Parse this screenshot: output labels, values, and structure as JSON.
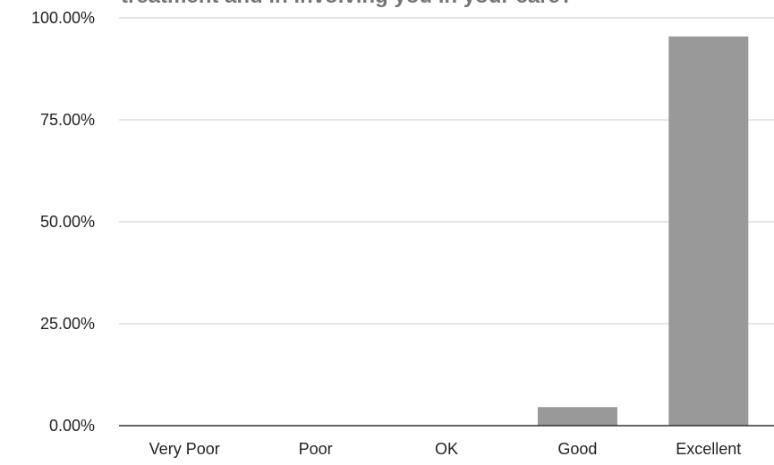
{
  "chart_data": {
    "type": "bar",
    "title": "treatment and in involving you in your care?",
    "xlabel": "",
    "ylabel": "",
    "categories": [
      "Very Poor",
      "Poor",
      "OK",
      "Good",
      "Excellent"
    ],
    "values": [
      0,
      0,
      0,
      4.55,
      95.45
    ],
    "value_format": "percent",
    "ylim": [
      0,
      100
    ],
    "yticks": [
      0,
      25,
      50,
      75,
      100
    ],
    "ytick_labels": [
      "0.00%",
      "25.00%",
      "50.00%",
      "75.00%",
      "100.00%"
    ],
    "grid": true,
    "legend": "none",
    "colors": {
      "bar": "#999999",
      "gridline": "#cccccc",
      "baseline": "#333333",
      "title": "#757575"
    }
  }
}
